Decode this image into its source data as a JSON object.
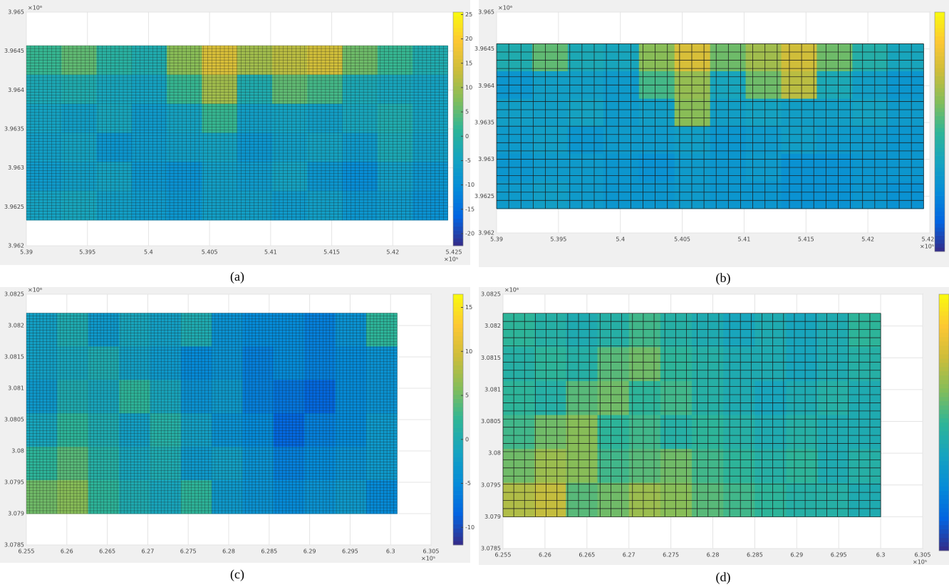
{
  "chart_data": [
    {
      "type": "heatmap",
      "caption": "(a)",
      "x_exponent": "×10⁵",
      "y_exponent": "×10⁶",
      "xlim": [
        5.39,
        5.425
      ],
      "xticks": [
        5.39,
        5.395,
        5.4,
        5.405,
        5.41,
        5.415,
        5.42,
        5.425
      ],
      "ylim": [
        3.962,
        3.965
      ],
      "yticks": [
        3.962,
        3.9625,
        3.963,
        3.9635,
        3.964,
        3.9645,
        3.965
      ],
      "data_xlim": [
        5.39,
        5.4245
      ],
      "data_ylim": [
        3.96233,
        3.96457
      ],
      "mesh": [
        100,
        60
      ],
      "clim": [
        -22.5,
        25.5
      ],
      "cticks": [
        -20,
        -15,
        -10,
        -5,
        0,
        5,
        10,
        15,
        20,
        25
      ],
      "values": [
        [
          2,
          5,
          0,
          -2,
          8,
          15,
          10,
          12,
          14,
          6,
          2,
          -2
        ],
        [
          -3,
          -2,
          -4,
          -5,
          2,
          10,
          -2,
          5,
          3,
          -3,
          -4,
          -5
        ],
        [
          -5,
          -6,
          -4,
          -7,
          -5,
          2,
          -6,
          -5,
          -6,
          -4,
          -2,
          -5
        ],
        [
          -6,
          -5,
          -8,
          -7,
          -6,
          -5,
          -8,
          -6,
          -5,
          -7,
          -3,
          -6
        ],
        [
          -7,
          -6,
          -5,
          -8,
          -9,
          -6,
          -7,
          -5,
          -8,
          -10,
          -6,
          -8
        ],
        [
          -5,
          -4,
          -6,
          -7,
          -8,
          -6,
          -6,
          -7,
          -6,
          -8,
          -7,
          -9
        ]
      ]
    },
    {
      "type": "heatmap",
      "caption": "(b)",
      "x_exponent": "×10⁵",
      "y_exponent": "×10⁶",
      "xlim": [
        5.39,
        5.425
      ],
      "xticks": [
        5.39,
        5.395,
        5.4,
        5.405,
        5.41,
        5.415,
        5.42,
        5.425
      ],
      "ylim": [
        3.962,
        3.965
      ],
      "yticks": [
        3.962,
        3.9625,
        3.963,
        3.9635,
        3.964,
        3.9645,
        3.965
      ],
      "data_xlim": [
        5.39,
        5.4245
      ],
      "data_ylim": [
        3.96233,
        3.96457
      ],
      "mesh": [
        35,
        20
      ],
      "clim": [
        -22.5,
        25.5
      ],
      "values": [
        [
          -2,
          5,
          -3,
          -4,
          8,
          15,
          6,
          10,
          14,
          6,
          -1,
          -4
        ],
        [
          -8,
          -6,
          -6,
          -7,
          3,
          9,
          -4,
          6,
          12,
          -3,
          -6,
          -8
        ],
        [
          -6,
          -6,
          -5,
          -7,
          -6,
          8,
          -6,
          -5,
          -6,
          -6,
          -5,
          -7
        ],
        [
          -7,
          -6,
          -8,
          -7,
          -7,
          -6,
          -8,
          -7,
          -6,
          -7,
          -7,
          -8
        ],
        [
          -8,
          -7,
          -7,
          -8,
          -9,
          -7,
          -8,
          -7,
          -9,
          -9,
          -8,
          -8
        ],
        [
          -7,
          -6,
          -7,
          -8,
          -8,
          -7,
          -8,
          -8,
          -9,
          -9,
          -8,
          -9
        ]
      ]
    },
    {
      "type": "heatmap",
      "caption": "(c)",
      "x_exponent": "×10⁵",
      "y_exponent": "×10⁶",
      "xlim": [
        6.255,
        6.305
      ],
      "xticks": [
        6.255,
        6.26,
        6.265,
        6.27,
        6.275,
        6.28,
        6.285,
        6.29,
        6.295,
        6.3,
        6.305
      ],
      "ylim": [
        3.0785,
        3.0825
      ],
      "yticks": [
        3.0785,
        3.079,
        3.0795,
        3.08,
        3.0805,
        3.081,
        3.0815,
        3.082,
        3.0825
      ],
      "data_xlim": [
        6.255,
        6.3008
      ],
      "data_ylim": [
        3.079,
        3.0822
      ],
      "mesh": [
        110,
        70
      ],
      "clim": [
        -12,
        16.5
      ],
      "cticks": [
        -10,
        -5,
        0,
        5,
        10,
        15
      ],
      "values": [
        [
          -2,
          0,
          -3,
          -1,
          -2,
          0,
          -4,
          -5,
          -5,
          -6,
          -4,
          2
        ],
        [
          -2,
          -1,
          0,
          -2,
          -3,
          -5,
          -4,
          -6,
          -5,
          -6,
          -5,
          -4
        ],
        [
          -3,
          0,
          -1,
          2,
          -1,
          -4,
          -3,
          -6,
          -7,
          -8,
          -5,
          -4
        ],
        [
          -1,
          2,
          0,
          -2,
          1,
          -2,
          -4,
          -5,
          -8,
          -6,
          -5,
          -3
        ],
        [
          2,
          4,
          1,
          -1,
          0,
          -3,
          -2,
          -4,
          -6,
          -5,
          -4,
          -3
        ],
        [
          5,
          6,
          2,
          0,
          -1,
          2,
          -3,
          -4,
          -5,
          -4,
          -3,
          -5
        ]
      ]
    },
    {
      "type": "heatmap",
      "caption": "(d)",
      "x_exponent": "×10⁵",
      "y_exponent": "×10⁶",
      "xlim": [
        6.255,
        6.305
      ],
      "xticks": [
        6.255,
        6.26,
        6.265,
        6.27,
        6.275,
        6.28,
        6.285,
        6.29,
        6.295,
        6.3,
        6.305
      ],
      "ylim": [
        3.0785,
        3.0825
      ],
      "yticks": [
        3.0785,
        3.079,
        3.0795,
        3.08,
        3.0805,
        3.081,
        3.0815,
        3.082,
        3.0825
      ],
      "data_xlim": [
        6.255,
        6.3
      ],
      "data_ylim": [
        3.079,
        3.0822
      ],
      "mesh": [
        35,
        25
      ],
      "clim": [
        -12,
        16.5
      ],
      "values": [
        [
          2,
          1,
          0,
          1,
          3,
          1,
          0,
          -1,
          0,
          -1,
          0,
          2
        ],
        [
          1,
          2,
          1,
          4,
          5,
          2,
          1,
          0,
          0,
          -1,
          0,
          1
        ],
        [
          2,
          1,
          4,
          5,
          2,
          3,
          1,
          0,
          -1,
          0,
          1,
          0
        ],
        [
          3,
          5,
          6,
          2,
          3,
          1,
          2,
          1,
          0,
          1,
          0,
          0
        ],
        [
          5,
          7,
          6,
          3,
          4,
          5,
          3,
          2,
          1,
          2,
          0,
          1
        ],
        [
          8,
          9,
          4,
          5,
          7,
          6,
          4,
          3,
          2,
          1,
          1,
          0
        ]
      ]
    }
  ]
}
